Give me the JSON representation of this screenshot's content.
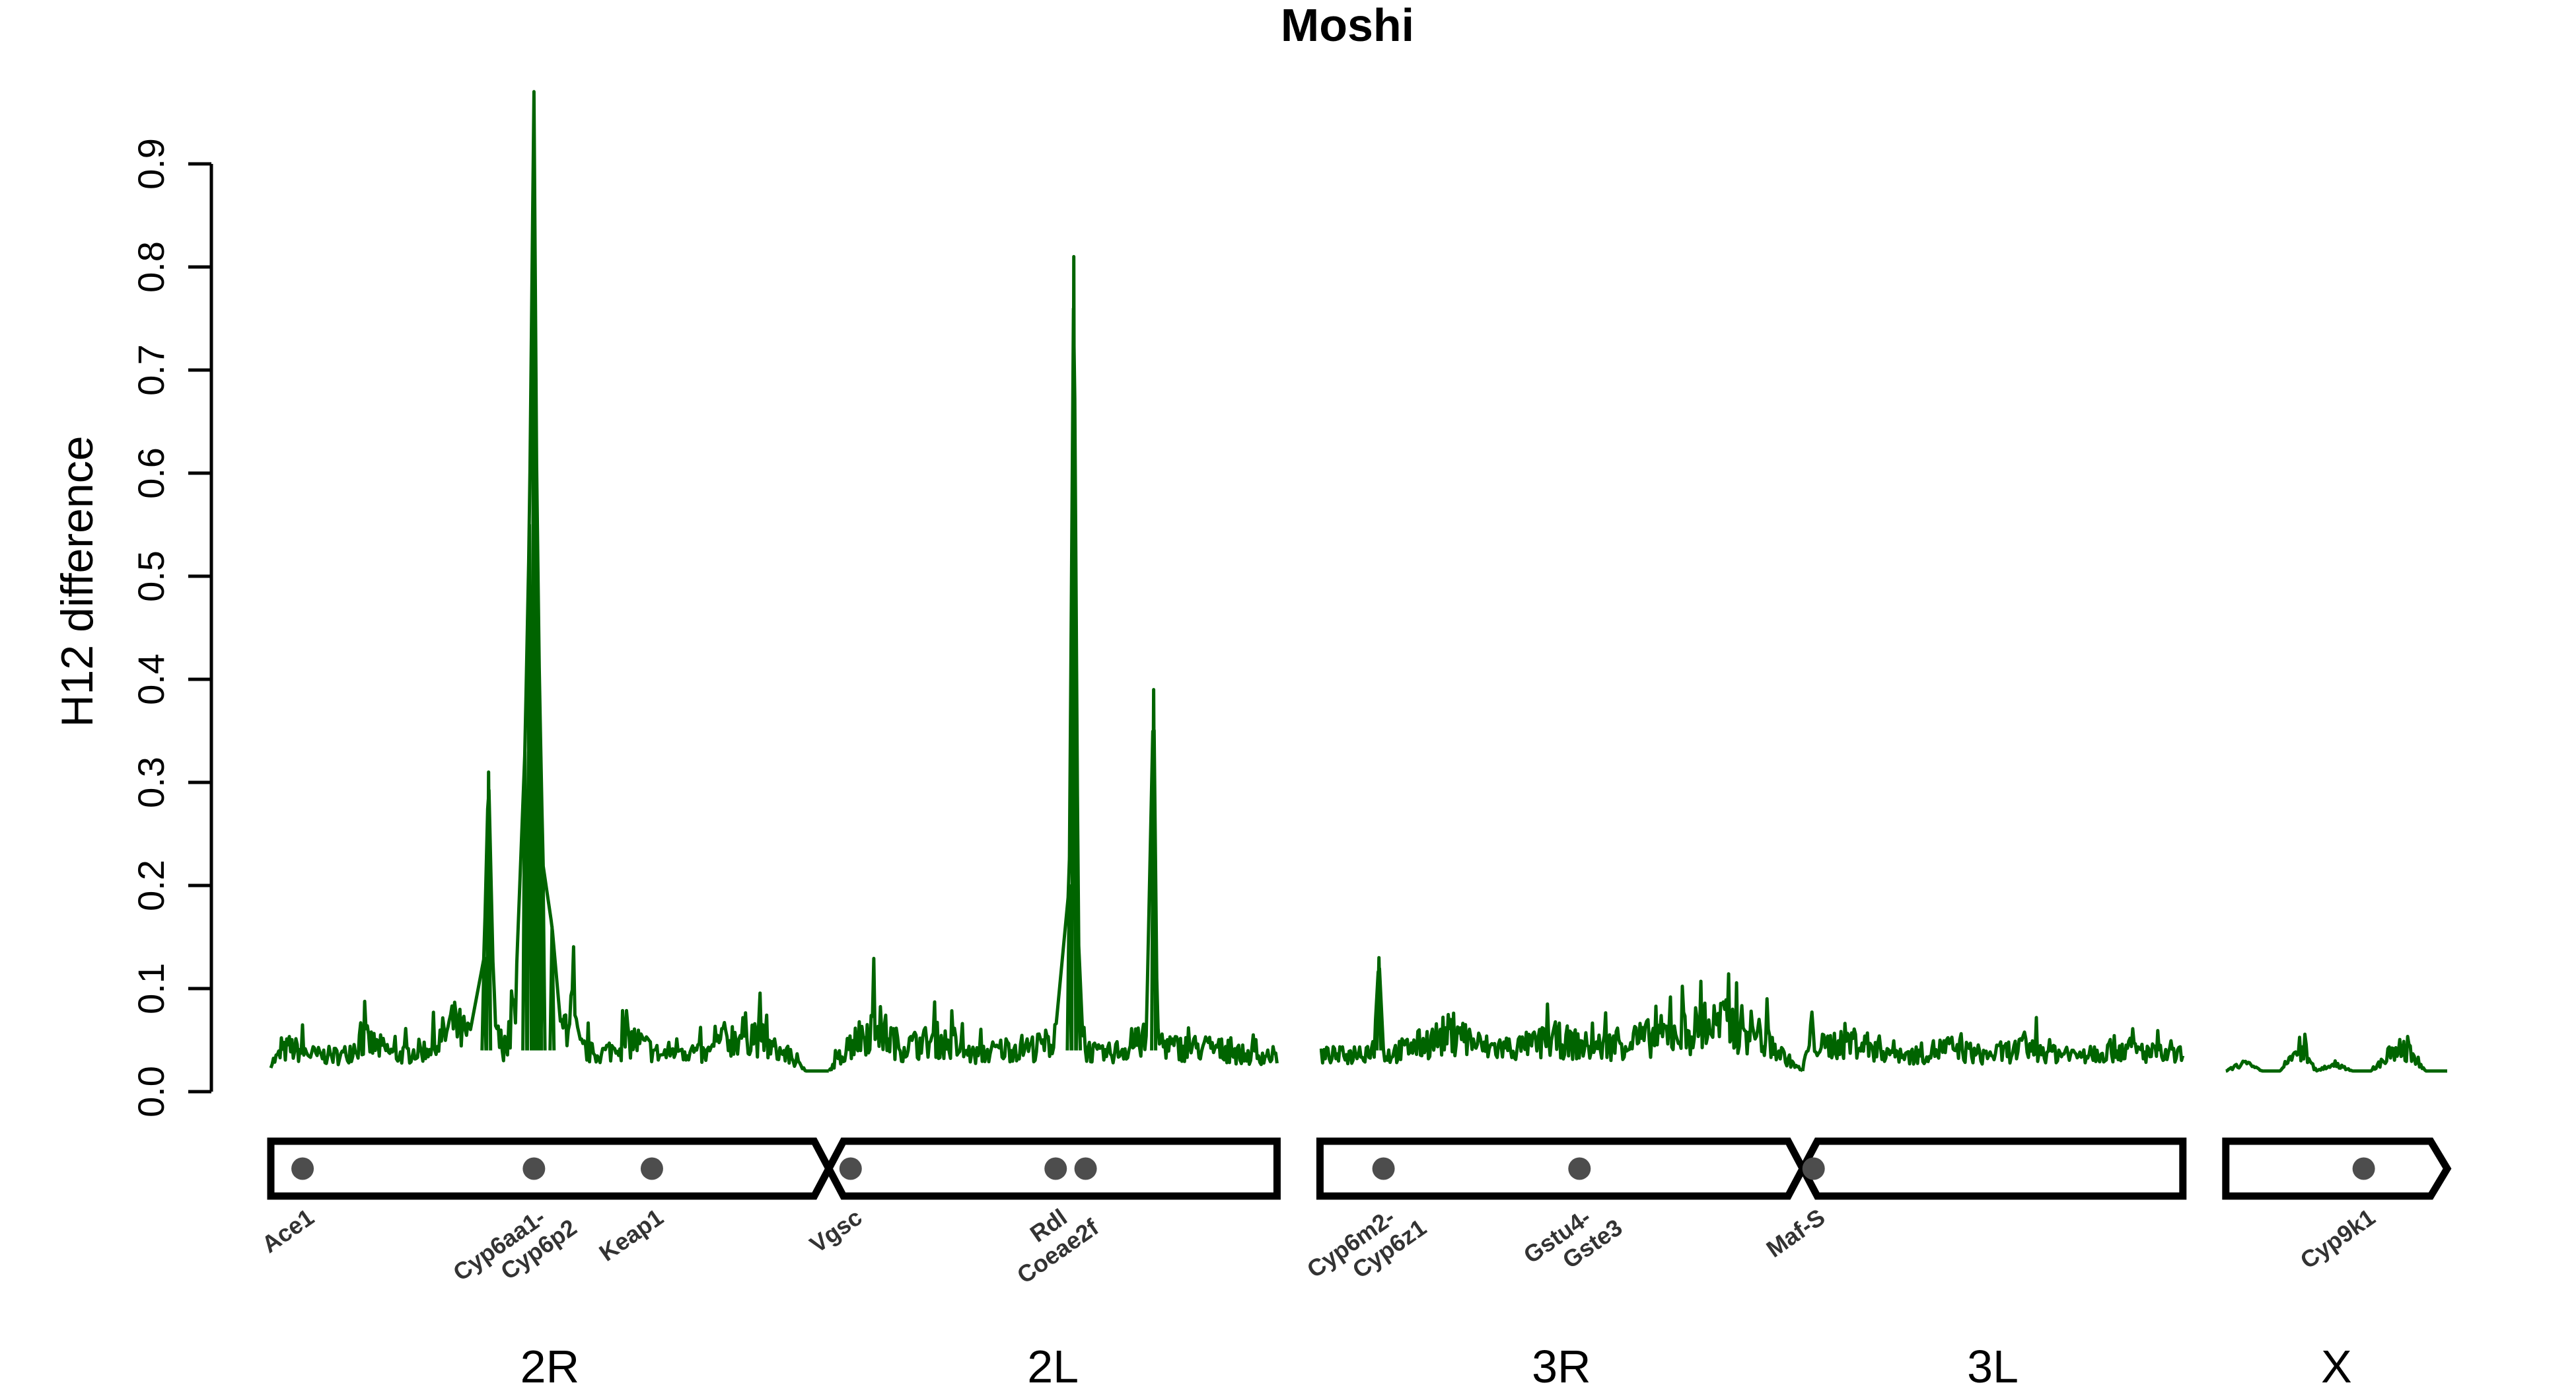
{
  "chart_data": {
    "type": "line",
    "title": "Moshi",
    "ylabel": "H12 difference",
    "xlabel": "",
    "ylim": [
      0,
      0.9
    ],
    "yticks": [
      "0.0",
      "0.1",
      "0.2",
      "0.3",
      "0.4",
      "0.5",
      "0.6",
      "0.7",
      "0.8",
      "0.9"
    ],
    "line_color": "#006400",
    "grid": false,
    "legend": "none",
    "x_unit": "Mb",
    "chromosome_arms": [
      {
        "name": "2R",
        "length": 61.5
      },
      {
        "name": "2L",
        "length": 49.4
      },
      {
        "name": "3R",
        "length": 53.2
      },
      {
        "name": "3L",
        "length": 41.9
      },
      {
        "name": "X",
        "length": 24.4
      }
    ],
    "series": [
      {
        "values": [
          {
            "arm": "2R",
            "x": [
              0,
              2,
              5,
              8,
              10,
              14,
              18,
              20,
              22,
              23.5,
              24,
              24.5,
              25,
              26,
              27,
              28,
              28.5,
              29,
              29.3,
              29.6,
              30,
              31,
              32,
              33,
              34,
              36,
              40,
              43,
              45,
              48,
              50,
              53,
              55,
              57,
              58,
              59,
              60,
              61.5
            ],
            "y": [
              0.03,
              0.05,
              0.04,
              0.04,
              0.06,
              0.04,
              0.05,
              0.08,
              0.06,
              0.13,
              0.31,
              0.12,
              0.06,
              0.05,
              0.1,
              0.33,
              0.55,
              0.97,
              0.6,
              0.4,
              0.22,
              0.16,
              0.06,
              0.11,
              0.05,
              0.04,
              0.06,
              0.04,
              0.05,
              0.04,
              0.06,
              0.07,
              0.05,
              0.04,
              0.03,
              0.02,
              0.02,
              0.02
            ]
          },
          {
            "arm": "2L",
            "x": [
              0,
              2,
              5,
              8,
              12,
              16,
              20,
              23,
              25,
              26.5,
              27,
              27.5,
              28,
              30,
              33,
              35,
              35.8,
              36.2,
              38,
              42,
              46,
              49.4
            ],
            "y": [
              0.02,
              0.05,
              0.08,
              0.05,
              0.06,
              0.04,
              0.05,
              0.05,
              0.06,
              0.2,
              0.81,
              0.15,
              0.05,
              0.04,
              0.05,
              0.06,
              0.39,
              0.06,
              0.05,
              0.05,
              0.04,
              0.04
            ]
          },
          {
            "arm": "3R",
            "x": [
              0,
              3,
              6,
              6.5,
              7,
              10,
              15,
              18,
              22,
              26,
              30,
              35,
              40,
              44,
              48,
              51,
              53.2
            ],
            "y": [
              0.04,
              0.04,
              0.05,
              0.13,
              0.04,
              0.05,
              0.07,
              0.05,
              0.05,
              0.06,
              0.05,
              0.06,
              0.07,
              0.08,
              0.07,
              0.04,
              0.02
            ]
          },
          {
            "arm": "3L",
            "x": [
              0,
              1,
              2,
              5,
              8,
              12,
              16,
              20,
              25,
              30,
              35,
              40,
              41.9
            ],
            "y": [
              0.02,
              0.07,
              0.05,
              0.06,
              0.05,
              0.04,
              0.05,
              0.04,
              0.05,
              0.04,
              0.05,
              0.04,
              0.04
            ]
          },
          {
            "arm": "X",
            "x": [
              0,
              2,
              4,
              6,
              8,
              10,
              12,
              14,
              16,
              18,
              20,
              22,
              24.4
            ],
            "y": [
              0.02,
              0.03,
              0.02,
              0.02,
              0.05,
              0.02,
              0.03,
              0.02,
              0.02,
              0.04,
              0.05,
              0.02,
              0.02
            ]
          }
        ]
      }
    ],
    "genes": [
      {
        "label": "Ace1",
        "arm": "2R",
        "pos": 3.5
      },
      {
        "label": "Cyp6aa1-\nCyp6p2",
        "arm": "2R",
        "pos": 29.0
      },
      {
        "label": "Keap1",
        "arm": "2R",
        "pos": 42.0
      },
      {
        "label": "Vgsc",
        "arm": "2L",
        "pos": 2.4
      },
      {
        "label": "Rdl\nCoeae2f",
        "arm": "2L",
        "pos": 25.0,
        "dot2": 28.3
      },
      {
        "label": "Cyp6m2-\nCyp6z1",
        "arm": "3R",
        "pos": 7.0
      },
      {
        "label": "Gstu4-\nGste3",
        "arm": "3R",
        "pos": 28.6
      },
      {
        "label": "Maf-S",
        "arm": "3L",
        "pos": 1.2
      },
      {
        "label": "Cyp9k1",
        "arm": "X",
        "pos": 15.2
      }
    ]
  }
}
